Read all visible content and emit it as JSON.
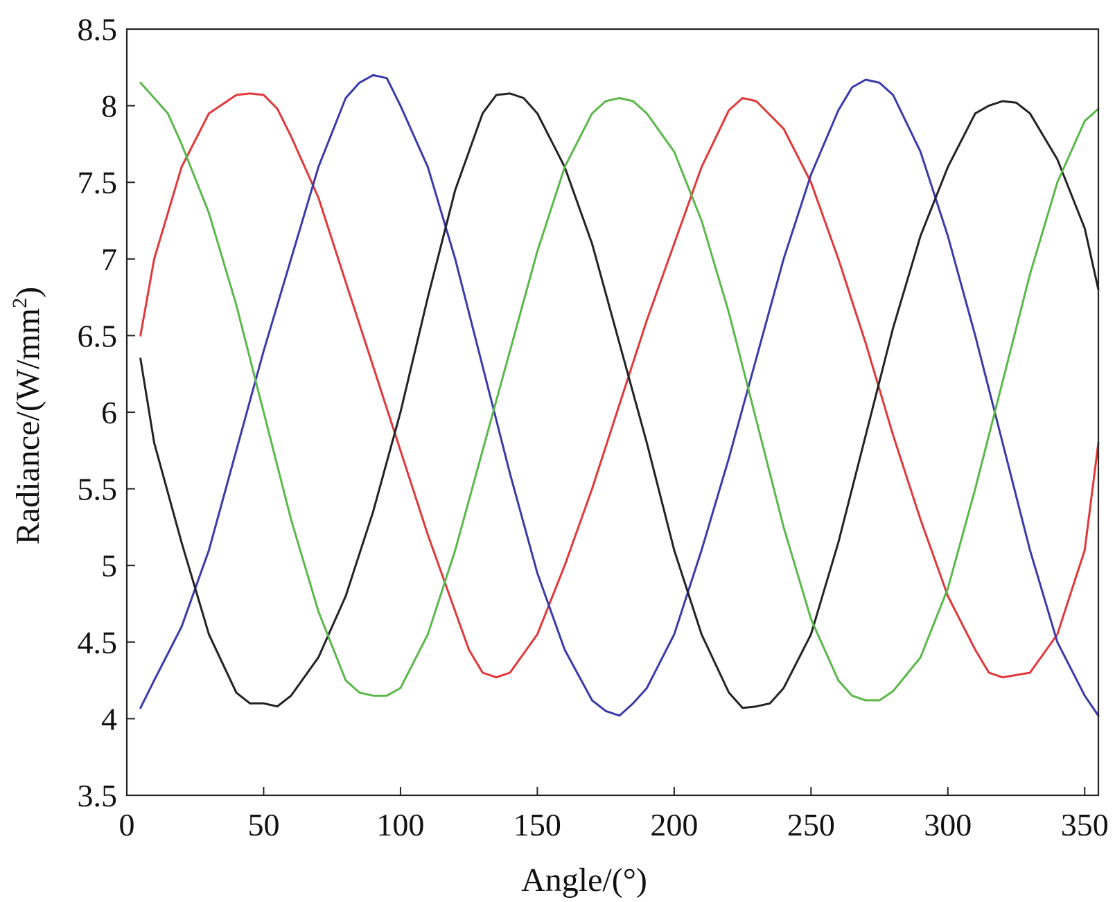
{
  "chart_data": {
    "type": "line",
    "xlabel": "Angle/(°)",
    "ylabel_main": "Radiance/(W/mm",
    "ylabel_sup": "2",
    "ylabel_end": ")",
    "xlim": [
      0,
      355
    ],
    "ylim": [
      3.5,
      8.5
    ],
    "xticks": [
      0,
      50,
      100,
      150,
      200,
      250,
      300,
      350
    ],
    "xtick_labels": [
      "0",
      "50",
      "100",
      "150",
      "200",
      "250",
      "300",
      "350"
    ],
    "yticks": [
      3.5,
      4,
      4.5,
      5,
      5.5,
      6,
      6.5,
      7,
      7.5,
      8,
      8.5
    ],
    "ytick_labels": [
      "3.5",
      "4",
      "4.5",
      "5",
      "5.5",
      "6",
      "6.5",
      "7",
      "7.5",
      "8",
      "8.5"
    ],
    "grid": false,
    "legend": "none",
    "series": [
      {
        "color": "#e0383a",
        "x": [
          5,
          10,
          20,
          30,
          40,
          45,
          50,
          55,
          60,
          70,
          80,
          90,
          100,
          110,
          120,
          125,
          130,
          135,
          140,
          150,
          160,
          170,
          180,
          190,
          200,
          210,
          220,
          225,
          230,
          240,
          250,
          260,
          270,
          280,
          290,
          300,
          310,
          315,
          320,
          330,
          340,
          350,
          355
        ],
        "y": [
          6.5,
          7.0,
          7.6,
          7.95,
          8.07,
          8.08,
          8.07,
          7.98,
          7.8,
          7.4,
          6.85,
          6.3,
          5.75,
          5.2,
          4.7,
          4.45,
          4.3,
          4.27,
          4.3,
          4.55,
          5.0,
          5.5,
          6.05,
          6.6,
          7.1,
          7.6,
          7.97,
          8.05,
          8.03,
          7.85,
          7.5,
          7.0,
          6.45,
          5.85,
          5.3,
          4.8,
          4.45,
          4.3,
          4.27,
          4.3,
          4.55,
          5.1,
          5.8
        ]
      },
      {
        "color": "#3a3aaa",
        "x": [
          5,
          10,
          20,
          30,
          40,
          50,
          60,
          70,
          80,
          85,
          90,
          95,
          100,
          110,
          120,
          130,
          140,
          150,
          160,
          170,
          175,
          180,
          185,
          190,
          200,
          210,
          220,
          230,
          240,
          250,
          260,
          265,
          270,
          275,
          280,
          290,
          300,
          310,
          320,
          330,
          340,
          350,
          355
        ],
        "y": [
          4.07,
          4.25,
          4.6,
          5.1,
          5.75,
          6.4,
          7.0,
          7.6,
          8.05,
          8.15,
          8.2,
          8.18,
          8.0,
          7.6,
          7.0,
          6.3,
          5.6,
          4.95,
          4.45,
          4.12,
          4.05,
          4.02,
          4.1,
          4.2,
          4.55,
          5.1,
          5.7,
          6.35,
          7.0,
          7.55,
          7.97,
          8.12,
          8.17,
          8.15,
          8.07,
          7.7,
          7.15,
          6.5,
          5.8,
          5.1,
          4.5,
          4.15,
          4.02
        ]
      },
      {
        "color": "#222222",
        "x": [
          5,
          10,
          20,
          30,
          40,
          45,
          50,
          55,
          60,
          70,
          80,
          90,
          100,
          110,
          120,
          130,
          135,
          140,
          145,
          150,
          160,
          170,
          180,
          190,
          200,
          210,
          220,
          225,
          230,
          235,
          240,
          250,
          260,
          270,
          280,
          290,
          300,
          310,
          315,
          320,
          325,
          330,
          340,
          350,
          355
        ],
        "y": [
          6.35,
          5.8,
          5.15,
          4.55,
          4.17,
          4.1,
          4.1,
          4.08,
          4.15,
          4.4,
          4.8,
          5.35,
          6.0,
          6.75,
          7.45,
          7.95,
          8.07,
          8.08,
          8.05,
          7.95,
          7.6,
          7.1,
          6.45,
          5.8,
          5.1,
          4.55,
          4.17,
          4.07,
          4.08,
          4.1,
          4.2,
          4.55,
          5.15,
          5.85,
          6.55,
          7.15,
          7.6,
          7.95,
          8.0,
          8.03,
          8.02,
          7.95,
          7.65,
          7.2,
          6.8
        ]
      },
      {
        "color": "#5ab84a",
        "x": [
          5,
          10,
          15,
          20,
          30,
          40,
          50,
          60,
          70,
          80,
          85,
          90,
          95,
          100,
          110,
          120,
          130,
          140,
          150,
          160,
          170,
          175,
          180,
          185,
          190,
          200,
          210,
          220,
          230,
          240,
          250,
          260,
          265,
          270,
          275,
          280,
          290,
          300,
          310,
          320,
          330,
          340,
          350,
          355
        ],
        "y": [
          8.15,
          8.05,
          7.95,
          7.75,
          7.3,
          6.7,
          6.0,
          5.3,
          4.7,
          4.25,
          4.17,
          4.15,
          4.15,
          4.2,
          4.55,
          5.1,
          5.75,
          6.4,
          7.05,
          7.6,
          7.95,
          8.03,
          8.05,
          8.03,
          7.95,
          7.7,
          7.25,
          6.65,
          5.95,
          5.25,
          4.65,
          4.25,
          4.15,
          4.12,
          4.12,
          4.18,
          4.4,
          4.85,
          5.5,
          6.2,
          6.9,
          7.5,
          7.9,
          7.98
        ]
      }
    ]
  }
}
